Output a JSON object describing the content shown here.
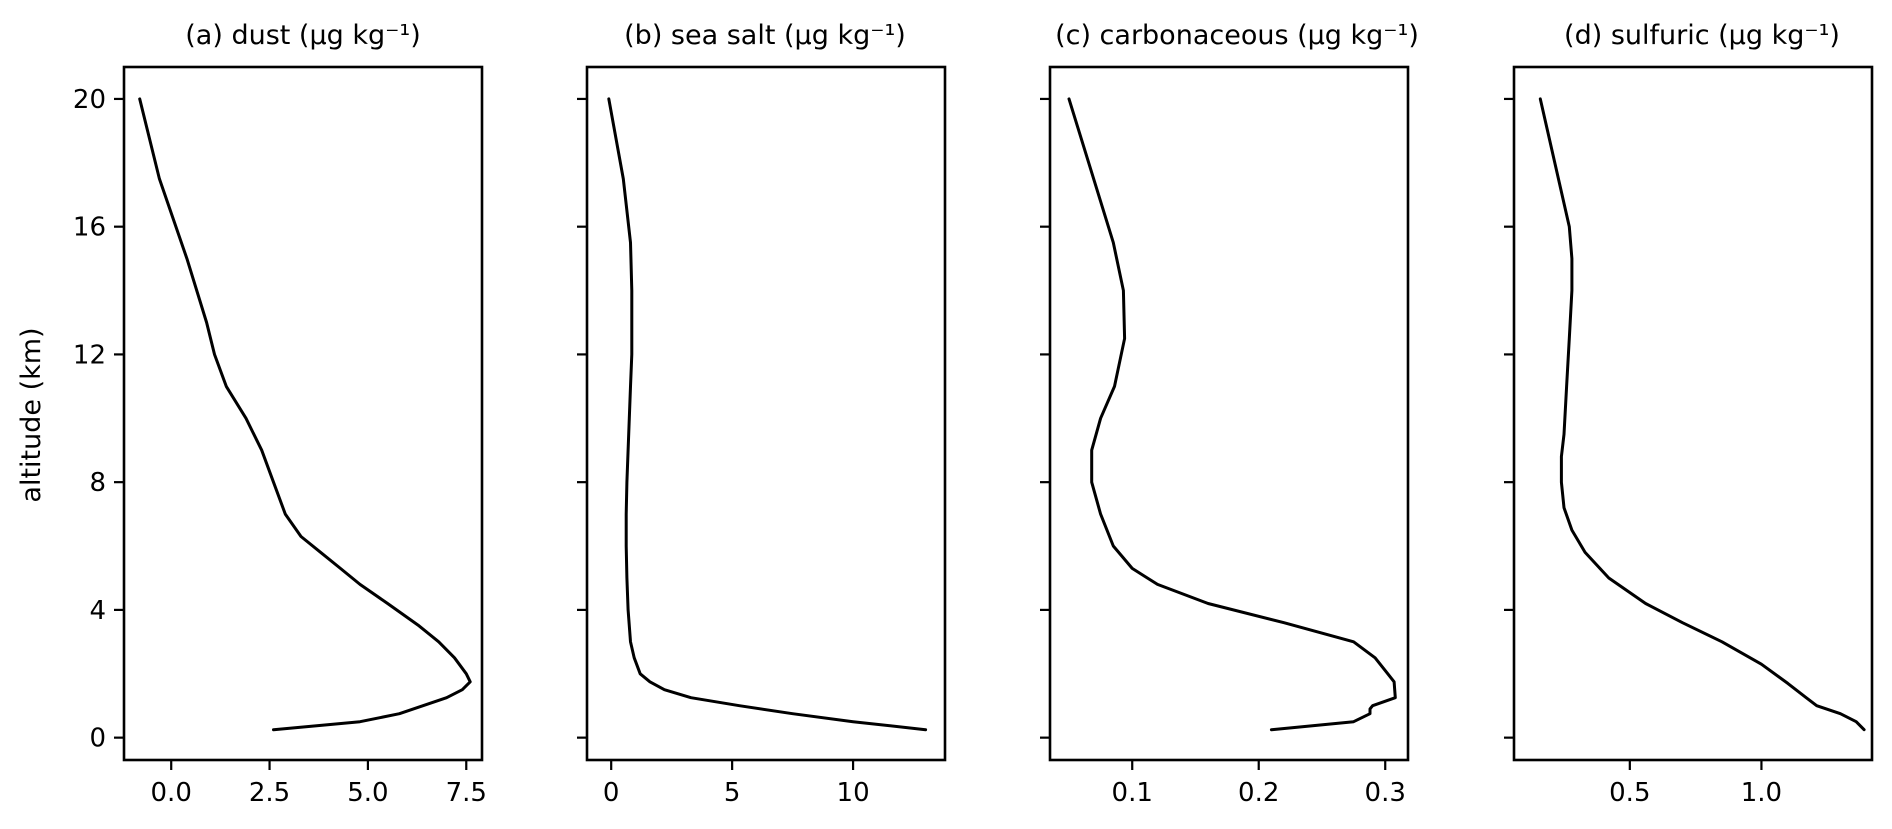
{
  "figure": {
    "ylabel": "altitude (km)",
    "line_color": "#000000"
  },
  "chart_data": [
    {
      "type": "line",
      "title": "(a) dust (μg kg⁻¹)",
      "xlabel": "",
      "ylabel": "altitude (km)",
      "xlim": [
        -1.2,
        7.9
      ],
      "ylim": [
        -0.7,
        21
      ],
      "xticks": [
        0.0,
        2.5,
        5.0,
        7.5
      ],
      "xticklabels": [
        "0.0",
        "2.5",
        "5.0",
        "7.5"
      ],
      "yticks": [
        0,
        4,
        8,
        12,
        16,
        20
      ],
      "yticklabels": [
        "0",
        "4",
        "8",
        "12",
        "16",
        "20"
      ],
      "grid": false,
      "series": [
        {
          "x": [
            2.6,
            4.8,
            5.8,
            6.4,
            7.0,
            7.4,
            7.6,
            7.5,
            7.2,
            6.8,
            6.3,
            5.5,
            4.8,
            4.3,
            3.8,
            3.3,
            2.9,
            2.6,
            2.3,
            1.9,
            1.4,
            1.1,
            0.9,
            0.4,
            -0.3,
            -0.8
          ],
          "y": [
            0.25,
            0.5,
            0.75,
            1.0,
            1.25,
            1.5,
            1.75,
            2.0,
            2.5,
            3.0,
            3.5,
            4.2,
            4.8,
            5.3,
            5.8,
            6.3,
            7.0,
            8.0,
            9.0,
            10.0,
            11.0,
            12.0,
            13.0,
            15.0,
            17.5,
            20.0
          ]
        }
      ]
    },
    {
      "type": "line",
      "title": "(b) sea salt (μg kg⁻¹)",
      "xlabel": "",
      "ylabel": "",
      "xlim": [
        -1.0,
        13.8
      ],
      "ylim": [
        -0.7,
        21
      ],
      "xticks": [
        0,
        5,
        10
      ],
      "xticklabels": [
        "0",
        "5",
        "10"
      ],
      "yticks": [
        0,
        4,
        8,
        12,
        16,
        20
      ],
      "yticklabels": [
        "",
        "",
        "",
        "",
        "",
        ""
      ],
      "grid": false,
      "series": [
        {
          "x": [
            13.0,
            10.0,
            7.5,
            5.3,
            3.3,
            2.2,
            1.6,
            1.2,
            0.95,
            0.8,
            0.7,
            0.65,
            0.62,
            0.62,
            0.65,
            0.7,
            0.75,
            0.8,
            0.85,
            0.85,
            0.8,
            0.5,
            -0.1
          ],
          "y": [
            0.25,
            0.5,
            0.75,
            1.0,
            1.25,
            1.5,
            1.75,
            2.0,
            2.5,
            3.0,
            4.0,
            5.0,
            6.0,
            7.0,
            8.0,
            9.0,
            10.0,
            11.0,
            12.0,
            14.0,
            15.5,
            17.5,
            20.0
          ]
        }
      ]
    },
    {
      "type": "line",
      "title": "(c) carbonaceous (μg kg⁻¹)",
      "xlabel": "",
      "ylabel": "",
      "xlim": [
        0.035,
        0.318
      ],
      "ylim": [
        -0.7,
        21
      ],
      "xticks": [
        0.1,
        0.2,
        0.3
      ],
      "xticklabels": [
        "0.1",
        "0.2",
        "0.3"
      ],
      "yticks": [
        0,
        4,
        8,
        12,
        16,
        20
      ],
      "yticklabels": [
        "",
        "",
        "",
        "",
        "",
        ""
      ],
      "grid": false,
      "series": [
        {
          "x": [
            0.21,
            0.275,
            0.288,
            0.288,
            0.29,
            0.308,
            0.307,
            0.302,
            0.292,
            0.275,
            0.22,
            0.16,
            0.12,
            0.1,
            0.085,
            0.075,
            0.068,
            0.068,
            0.075,
            0.086,
            0.094,
            0.093,
            0.085,
            0.05
          ],
          "y": [
            0.25,
            0.5,
            0.75,
            0.9,
            1.0,
            1.25,
            1.75,
            2.0,
            2.5,
            3.0,
            3.6,
            4.2,
            4.8,
            5.3,
            6.0,
            7.0,
            8.0,
            9.0,
            10.0,
            11.0,
            12.5,
            14.0,
            15.5,
            20.0
          ]
        }
      ]
    },
    {
      "type": "line",
      "title": "(d) sulfuric (μg kg⁻¹)",
      "xlabel": "",
      "ylabel": "",
      "xlim": [
        0.06,
        1.42
      ],
      "ylim": [
        -0.7,
        21
      ],
      "xticks": [
        0.5,
        1.0
      ],
      "xticklabels": [
        "0.5",
        "1.0"
      ],
      "yticks": [
        0,
        4,
        8,
        12,
        16,
        20
      ],
      "yticklabels": [
        "",
        "",
        "",
        "",
        "",
        ""
      ],
      "grid": false,
      "series": [
        {
          "x": [
            1.39,
            1.36,
            1.3,
            1.21,
            1.17,
            1.1,
            1.0,
            0.85,
            0.7,
            0.56,
            0.42,
            0.33,
            0.28,
            0.25,
            0.24,
            0.24,
            0.25,
            0.26,
            0.27,
            0.28,
            0.28,
            0.27,
            0.16
          ],
          "y": [
            0.25,
            0.5,
            0.75,
            1.0,
            1.25,
            1.7,
            2.3,
            3.0,
            3.6,
            4.2,
            5.0,
            5.8,
            6.5,
            7.2,
            8.0,
            8.8,
            9.5,
            11.0,
            12.5,
            14.0,
            15.0,
            16.0,
            20.0
          ]
        }
      ]
    }
  ]
}
